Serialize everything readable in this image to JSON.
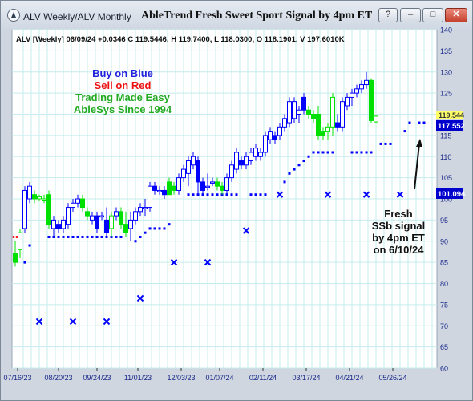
{
  "window": {
    "title": "ALV Weekly/ALV Monthly",
    "chart_title": "AbleTrend Fresh Sweet Sport Signal by 4pm ET",
    "buttons": {
      "help": "?",
      "minimize": "–",
      "maximize": "□",
      "close": "✕"
    }
  },
  "header_info": "ALV [Weekly] 06/09/24 +0.0346 C 119.5446, H 119.7400, L 118.0300, O 118.1901, V 197.6010K",
  "legend": {
    "line1": "Buy on Blue",
    "line2": "Sell on Red",
    "line3": "Trading Made Easy",
    "line4": "AbleSys Since 1994"
  },
  "annotation": {
    "line1": "Fresh",
    "line2": "SSb signal",
    "line3": "by 4pm ET",
    "line4": "on 6/10/24"
  },
  "price_tags": {
    "upper": "119.544",
    "mid": "117.552",
    "low": "101.094"
  },
  "colors": {
    "blue": "#0000ff",
    "green": "#00e000",
    "red": "#ff0000",
    "grid": "#c6ecee",
    "tag_blue": "#0000cc"
  },
  "chart_data": {
    "type": "candlestick",
    "ylim": [
      60,
      140
    ],
    "yticks": [
      "60",
      "65",
      "70",
      "75",
      "80",
      "85",
      "90",
      "95",
      "100",
      "105",
      "110",
      "115",
      "120",
      "125",
      "130",
      "135",
      "140"
    ],
    "xticks": [
      "07/16/23",
      "08/20/23",
      "09/24/23",
      "11/01/23",
      "12/03/23",
      "01/07/24",
      "02/11/24",
      "03/17/24",
      "04/21/24",
      "05/26/24"
    ],
    "xtick_index": [
      0.5,
      9,
      17,
      25.5,
      34.5,
      42.5,
      51.5,
      60.5,
      69.5,
      78.5
    ],
    "candles": [
      {
        "o": 87,
        "h": 90,
        "l": 84,
        "c": 85,
        "col": "green"
      },
      {
        "o": 88,
        "h": 93,
        "l": 86,
        "c": 92,
        "col": "green"
      },
      {
        "o": 93,
        "h": 103,
        "l": 92,
        "c": 102,
        "col": "blue"
      },
      {
        "o": 100,
        "h": 104,
        "l": 99,
        "c": 103,
        "col": "blue"
      },
      {
        "o": 101,
        "h": 102,
        "l": 99,
        "c": 100,
        "col": "green"
      },
      {
        "o": 100,
        "h": 101,
        "l": 99.5,
        "c": 100.5,
        "col": "green"
      },
      {
        "o": 100,
        "h": 101,
        "l": 99,
        "c": 100,
        "col": "green"
      },
      {
        "o": 101,
        "h": 102,
        "l": 93,
        "c": 94,
        "col": "green"
      },
      {
        "o": 93,
        "h": 96,
        "l": 91,
        "c": 95,
        "col": "blue"
      },
      {
        "o": 94,
        "h": 95,
        "l": 92,
        "c": 93,
        "col": "blue"
      },
      {
        "o": 93,
        "h": 96,
        "l": 92,
        "c": 95,
        "col": "blue"
      },
      {
        "o": 94,
        "h": 99,
        "l": 93,
        "c": 98,
        "col": "blue"
      },
      {
        "o": 98,
        "h": 100,
        "l": 97,
        "c": 99,
        "col": "blue"
      },
      {
        "o": 99,
        "h": 101,
        "l": 98,
        "c": 100,
        "col": "blue"
      },
      {
        "o": 100,
        "h": 101,
        "l": 97,
        "c": 98,
        "col": "green"
      },
      {
        "o": 97,
        "h": 98,
        "l": 95,
        "c": 96,
        "col": "green"
      },
      {
        "o": 95,
        "h": 97,
        "l": 94,
        "c": 96,
        "col": "blue"
      },
      {
        "o": 96,
        "h": 97,
        "l": 92,
        "c": 93,
        "col": "blue"
      },
      {
        "o": 96,
        "h": 97,
        "l": 95,
        "c": 96,
        "col": "blue"
      },
      {
        "o": 95,
        "h": 98,
        "l": 91,
        "c": 92,
        "col": "blue"
      },
      {
        "o": 93,
        "h": 97,
        "l": 91,
        "c": 96,
        "col": "green"
      },
      {
        "o": 96,
        "h": 98,
        "l": 95,
        "c": 97,
        "col": "blue"
      },
      {
        "o": 97,
        "h": 98,
        "l": 93,
        "c": 94,
        "col": "green"
      },
      {
        "o": 94,
        "h": 97,
        "l": 91,
        "c": 92,
        "col": "green"
      },
      {
        "o": 93,
        "h": 97,
        "l": 90,
        "c": 95,
        "col": "blue"
      },
      {
        "o": 95,
        "h": 98,
        "l": 94,
        "c": 97,
        "col": "blue"
      },
      {
        "o": 97,
        "h": 99,
        "l": 96,
        "c": 98,
        "col": "blue"
      },
      {
        "o": 98,
        "h": 100,
        "l": 96,
        "c": 98,
        "col": "blue"
      },
      {
        "o": 98,
        "h": 104,
        "l": 97,
        "c": 103,
        "col": "blue"
      },
      {
        "o": 103,
        "h": 104,
        "l": 101,
        "c": 102,
        "col": "blue"
      },
      {
        "o": 102,
        "h": 103,
        "l": 101,
        "c": 102,
        "col": "blue"
      },
      {
        "o": 102,
        "h": 103,
        "l": 100,
        "c": 101,
        "col": "blue"
      },
      {
        "o": 104,
        "h": 105,
        "l": 101,
        "c": 101,
        "col": "green"
      },
      {
        "o": 103,
        "h": 104,
        "l": 101,
        "c": 102,
        "col": "green"
      },
      {
        "o": 102,
        "h": 106,
        "l": 101,
        "c": 105,
        "col": "blue"
      },
      {
        "o": 105,
        "h": 108,
        "l": 104,
        "c": 107,
        "col": "blue"
      },
      {
        "o": 106,
        "h": 110,
        "l": 103,
        "c": 109,
        "col": "blue"
      },
      {
        "o": 108,
        "h": 111,
        "l": 107,
        "c": 110,
        "col": "blue"
      },
      {
        "o": 109,
        "h": 110,
        "l": 101,
        "c": 104,
        "col": "blue"
      },
      {
        "o": 104,
        "h": 105,
        "l": 101,
        "c": 102,
        "col": "blue"
      },
      {
        "o": 103,
        "h": 106,
        "l": 102,
        "c": 103,
        "col": "blue"
      },
      {
        "o": 104,
        "h": 105,
        "l": 103,
        "c": 104,
        "col": "blue"
      },
      {
        "o": 104,
        "h": 105,
        "l": 102,
        "c": 103,
        "col": "green"
      },
      {
        "o": 103,
        "h": 104,
        "l": 101,
        "c": 102,
        "col": "green"
      },
      {
        "o": 102,
        "h": 106,
        "l": 101,
        "c": 105,
        "col": "blue"
      },
      {
        "o": 105,
        "h": 109,
        "l": 104,
        "c": 108,
        "col": "blue"
      },
      {
        "o": 107,
        "h": 112,
        "l": 106,
        "c": 111,
        "col": "blue"
      },
      {
        "o": 109,
        "h": 110,
        "l": 107,
        "c": 108,
        "col": "blue"
      },
      {
        "o": 108,
        "h": 111,
        "l": 107,
        "c": 110,
        "col": "blue"
      },
      {
        "o": 109,
        "h": 112,
        "l": 108,
        "c": 111,
        "col": "blue"
      },
      {
        "o": 110,
        "h": 113,
        "l": 109,
        "c": 112,
        "col": "blue"
      },
      {
        "o": 110,
        "h": 112,
        "l": 109,
        "c": 111,
        "col": "blue"
      },
      {
        "o": 111,
        "h": 116,
        "l": 110,
        "c": 115,
        "col": "blue"
      },
      {
        "o": 114,
        "h": 117,
        "l": 113,
        "c": 116,
        "col": "blue"
      },
      {
        "o": 115,
        "h": 116,
        "l": 113,
        "c": 114,
        "col": "blue"
      },
      {
        "o": 115,
        "h": 118,
        "l": 114,
        "c": 117,
        "col": "blue"
      },
      {
        "o": 117,
        "h": 120,
        "l": 116,
        "c": 119,
        "col": "blue"
      },
      {
        "o": 118,
        "h": 124,
        "l": 117,
        "c": 123,
        "col": "blue"
      },
      {
        "o": 119,
        "h": 124,
        "l": 118,
        "c": 123,
        "col": "blue"
      },
      {
        "o": 120,
        "h": 122,
        "l": 118,
        "c": 121,
        "col": "blue"
      },
      {
        "o": 124,
        "h": 125,
        "l": 120,
        "c": 121,
        "col": "blue"
      },
      {
        "o": 121,
        "h": 122,
        "l": 119,
        "c": 120,
        "col": "green"
      },
      {
        "o": 120,
        "h": 121,
        "l": 118,
        "c": 119,
        "col": "green"
      },
      {
        "o": 120,
        "h": 122,
        "l": 114,
        "c": 115,
        "col": "green"
      },
      {
        "o": 116,
        "h": 117,
        "l": 114,
        "c": 115,
        "col": "green"
      },
      {
        "o": 116,
        "h": 118,
        "l": 114,
        "c": 117,
        "col": "green"
      },
      {
        "o": 117,
        "h": 125,
        "l": 115,
        "c": 124,
        "col": "green"
      },
      {
        "o": 118,
        "h": 120,
        "l": 116,
        "c": 117,
        "col": "blue"
      },
      {
        "o": 117,
        "h": 124,
        "l": 116,
        "c": 123,
        "col": "blue"
      },
      {
        "o": 122,
        "h": 125,
        "l": 121,
        "c": 124,
        "col": "blue"
      },
      {
        "o": 124,
        "h": 126,
        "l": 122,
        "c": 125,
        "col": "blue"
      },
      {
        "o": 125,
        "h": 127,
        "l": 124,
        "c": 126,
        "col": "blue"
      },
      {
        "o": 126,
        "h": 128,
        "l": 125,
        "c": 127,
        "col": "blue"
      },
      {
        "o": 127,
        "h": 130,
        "l": 126,
        "c": 128,
        "col": "blue"
      },
      {
        "o": 128,
        "h": 128.5,
        "l": 118,
        "c": 118.5,
        "col": "green"
      },
      {
        "o": 118.19,
        "h": 119.74,
        "l": 118.03,
        "c": 119.54,
        "col": "green"
      }
    ],
    "stops": [
      {
        "i": 2,
        "v": 85
      },
      {
        "i": 3,
        "v": 89
      },
      {
        "i": 7,
        "v": 91
      },
      {
        "i": 8,
        "v": 91
      },
      {
        "i": 9,
        "v": 91
      },
      {
        "i": 10,
        "v": 91
      },
      {
        "i": 11,
        "v": 91
      },
      {
        "i": 12,
        "v": 91
      },
      {
        "i": 13,
        "v": 91
      },
      {
        "i": 14,
        "v": 91
      },
      {
        "i": 15,
        "v": 91
      },
      {
        "i": 16,
        "v": 91
      },
      {
        "i": 17,
        "v": 91
      },
      {
        "i": 18,
        "v": 91
      },
      {
        "i": 19,
        "v": 91
      },
      {
        "i": 20,
        "v": 91
      },
      {
        "i": 21,
        "v": 91
      },
      {
        "i": 22,
        "v": 91
      },
      {
        "i": 25,
        "v": 90
      },
      {
        "i": 26,
        "v": 91
      },
      {
        "i": 27,
        "v": 92
      },
      {
        "i": 28,
        "v": 93
      },
      {
        "i": 29,
        "v": 93
      },
      {
        "i": 30,
        "v": 93
      },
      {
        "i": 31,
        "v": 93
      },
      {
        "i": 32,
        "v": 94
      },
      {
        "i": 36,
        "v": 101
      },
      {
        "i": 37,
        "v": 101
      },
      {
        "i": 38,
        "v": 101
      },
      {
        "i": 39,
        "v": 101
      },
      {
        "i": 40,
        "v": 101
      },
      {
        "i": 41,
        "v": 101
      },
      {
        "i": 42,
        "v": 101
      },
      {
        "i": 43,
        "v": 101
      },
      {
        "i": 44,
        "v": 101
      },
      {
        "i": 45,
        "v": 101
      },
      {
        "i": 46,
        "v": 101
      },
      {
        "i": 49,
        "v": 101
      },
      {
        "i": 50,
        "v": 101
      },
      {
        "i": 51,
        "v": 101
      },
      {
        "i": 52,
        "v": 101
      },
      {
        "i": 56,
        "v": 104
      },
      {
        "i": 57,
        "v": 106
      },
      {
        "i": 58,
        "v": 107
      },
      {
        "i": 59,
        "v": 108
      },
      {
        "i": 60,
        "v": 109
      },
      {
        "i": 61,
        "v": 110
      },
      {
        "i": 62,
        "v": 111
      },
      {
        "i": 63,
        "v": 111
      },
      {
        "i": 64,
        "v": 111
      },
      {
        "i": 65,
        "v": 111
      },
      {
        "i": 66,
        "v": 111
      },
      {
        "i": 70,
        "v": 111
      },
      {
        "i": 71,
        "v": 111
      },
      {
        "i": 72,
        "v": 111
      },
      {
        "i": 73,
        "v": 111
      },
      {
        "i": 74,
        "v": 111
      },
      {
        "i": 76,
        "v": 113
      },
      {
        "i": 77,
        "v": 113
      },
      {
        "i": 78,
        "v": 113
      },
      {
        "i": 81,
        "v": 116
      },
      {
        "i": 82,
        "v": 118
      },
      {
        "i": 84,
        "v": 118
      },
      {
        "i": 85,
        "v": 118
      }
    ],
    "xmarks": [
      {
        "i": 5,
        "v": 71
      },
      {
        "i": 12,
        "v": 71
      },
      {
        "i": 19,
        "v": 71
      },
      {
        "i": 26,
        "v": 76.5
      },
      {
        "i": 33,
        "v": 85
      },
      {
        "i": 40,
        "v": 85
      },
      {
        "i": 48,
        "v": 92.5
      },
      {
        "i": 55,
        "v": 101
      },
      {
        "i": 65,
        "v": 101
      },
      {
        "i": 73,
        "v": 101
      },
      {
        "i": 80,
        "v": 101
      }
    ]
  }
}
